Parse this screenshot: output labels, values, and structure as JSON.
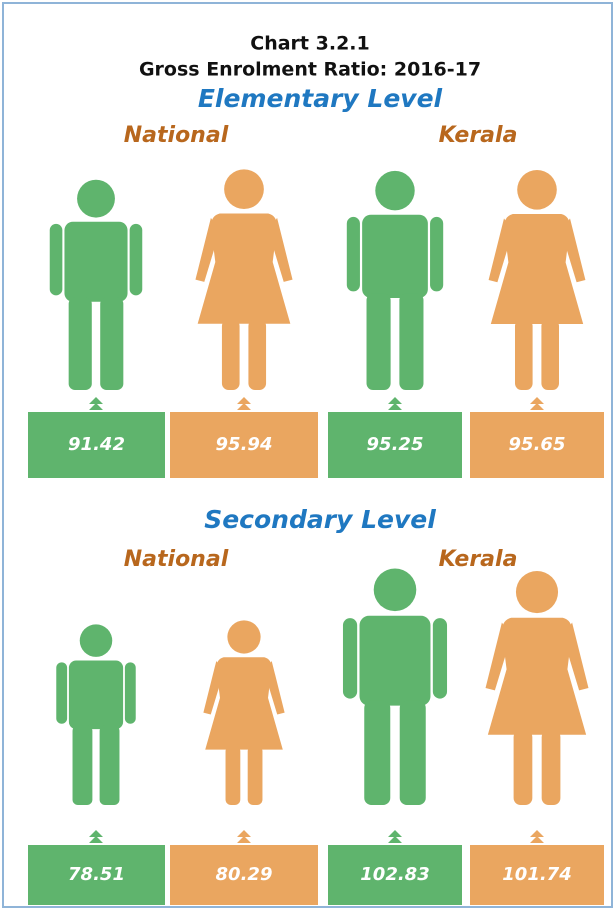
{
  "title": "Chart 3.2.1",
  "subtitle": "Gross Enrolment Ratio: 2016-17",
  "chart_data": [
    {
      "type": "pictogram",
      "title": "Elementary Level",
      "categories": [
        "National",
        "Kerala"
      ],
      "series": [
        {
          "color": "#5fb46d",
          "values": [
            91.42,
            95.25
          ]
        },
        {
          "color": "#eaa660",
          "values": [
            95.94,
            95.65
          ]
        }
      ]
    },
    {
      "type": "pictogram",
      "title": "Secondary Level",
      "categories": [
        "National",
        "Kerala"
      ],
      "series": [
        {
          "color": "#5fb46d",
          "values": [
            78.51,
            102.83
          ]
        },
        {
          "color": "#eaa660",
          "values": [
            80.29,
            101.74
          ]
        }
      ]
    }
  ]
}
